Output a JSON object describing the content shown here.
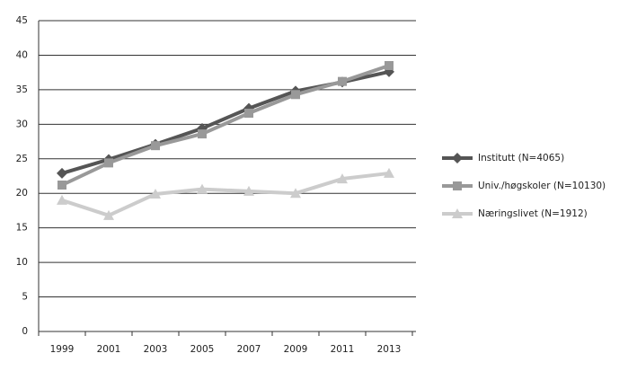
{
  "chart_data": {
    "type": "line",
    "categories": [
      "1999",
      "2001",
      "2003",
      "2005",
      "2007",
      "2009",
      "2011",
      "2013"
    ],
    "series": [
      {
        "name": "Institutt (N=4065)",
        "color": "#555555",
        "marker": "diamond",
        "values": [
          22.9,
          24.9,
          27.1,
          29.4,
          32.3,
          34.8,
          36.1,
          37.6
        ]
      },
      {
        "name": "Univ./høgskoler (N=10130)",
        "color": "#999999",
        "marker": "square",
        "values": [
          21.2,
          24.4,
          26.9,
          28.6,
          31.6,
          34.3,
          36.2,
          38.5
        ]
      },
      {
        "name": "Næringslivet (N=1912)",
        "color": "#cccccc",
        "marker": "triangle",
        "values": [
          19.0,
          16.8,
          19.9,
          20.6,
          20.3,
          20.0,
          22.1,
          22.9
        ]
      }
    ],
    "ylim": [
      0,
      45
    ],
    "yticks": [
      0,
      5,
      10,
      15,
      20,
      25,
      30,
      35,
      40,
      45
    ],
    "grid": true,
    "legend": "right"
  }
}
